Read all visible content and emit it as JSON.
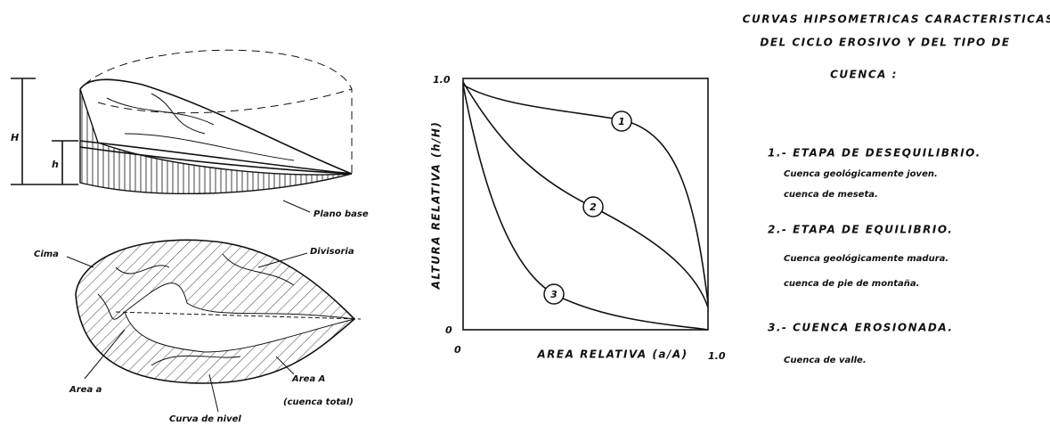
{
  "left_figure": {
    "block": {
      "H": "H",
      "h": "h",
      "plano_base": "Plano base"
    },
    "plan": {
      "cima": "Cima",
      "divisoria": "Divisoria",
      "area_a": "Area a",
      "area_total": [
        "Area A",
        "(cuenca total)"
      ],
      "curva_nivel": "Curva de nivel"
    }
  },
  "chart": {
    "y_label": "ALTURA RELATIVA (h/H)",
    "x_label": "AREA RELATIVA (a/A)",
    "y_ticks": [
      "0",
      "1.0"
    ],
    "x_ticks": [
      "0",
      "1.0"
    ],
    "curve_labels": [
      "1",
      "2",
      "3"
    ]
  },
  "legend": {
    "title": [
      "CURVAS HIPSOMETRICAS CARACTERISTICAS",
      "DEL CICLO EROSIVO Y DEL TIPO DE",
      "CUENCA :"
    ],
    "items": [
      {
        "heading": "1.- ETAPA DE DESEQUILIBRIO.",
        "lines": [
          "Cuenca geológicamente joven.",
          "cuenca de meseta."
        ]
      },
      {
        "heading": "2.- ETAPA DE EQUILIBRIO.",
        "lines": [
          "Cuenca geológicamente madura.",
          "cuenca de pie de montaña."
        ]
      },
      {
        "heading": "3.- CUENCA EROSIONADA.",
        "lines": [
          "Cuenca de valle."
        ]
      }
    ]
  }
}
